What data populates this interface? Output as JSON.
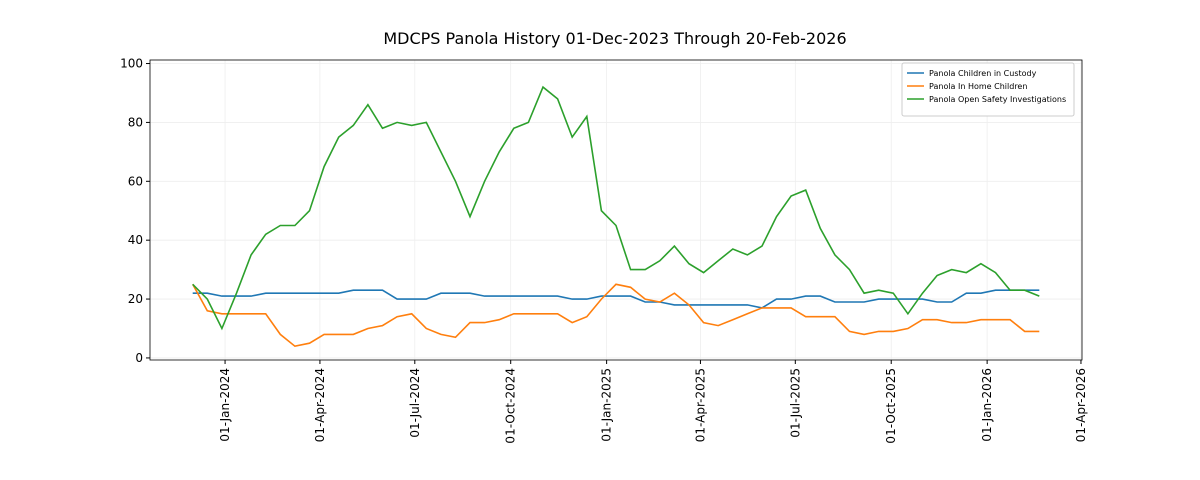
{
  "chart_data": {
    "type": "line",
    "title": "MDCPS Panola History 01-Dec-2023 Through 20-Feb-2026",
    "x": [
      "2023-12-01",
      "2023-12-15",
      "2023-12-29",
      "2024-01-12",
      "2024-01-26",
      "2024-02-09",
      "2024-02-23",
      "2024-03-08",
      "2024-03-22",
      "2024-04-05",
      "2024-04-19",
      "2024-05-03",
      "2024-05-17",
      "2024-05-31",
      "2024-06-14",
      "2024-06-28",
      "2024-07-12",
      "2024-07-26",
      "2024-08-09",
      "2024-08-23",
      "2024-09-06",
      "2024-09-20",
      "2024-10-04",
      "2024-10-18",
      "2024-11-01",
      "2024-11-15",
      "2024-11-29",
      "2024-12-13",
      "2024-12-27",
      "2025-01-10",
      "2025-01-24",
      "2025-02-07",
      "2025-02-21",
      "2025-03-07",
      "2025-03-21",
      "2025-04-04",
      "2025-04-18",
      "2025-05-02",
      "2025-05-16",
      "2025-05-30",
      "2025-06-13",
      "2025-06-27",
      "2025-07-11",
      "2025-07-25",
      "2025-08-08",
      "2025-08-22",
      "2025-09-05",
      "2025-09-19",
      "2025-10-03",
      "2025-10-17",
      "2025-10-31",
      "2025-11-14",
      "2025-11-28",
      "2025-12-12",
      "2025-12-26",
      "2026-01-09",
      "2026-01-23",
      "2026-02-06",
      "2026-02-20"
    ],
    "series": [
      {
        "name": "Panola Children in Custody",
        "color": "#1f77b4",
        "values": [
          22,
          22,
          21,
          21,
          21,
          22,
          22,
          22,
          22,
          22,
          22,
          23,
          23,
          23,
          20,
          20,
          20,
          22,
          22,
          22,
          21,
          21,
          21,
          21,
          21,
          21,
          20,
          20,
          21,
          21,
          21,
          19,
          19,
          18,
          18,
          18,
          18,
          18,
          18,
          17,
          20,
          20,
          21,
          21,
          19,
          19,
          19,
          20,
          20,
          20,
          20,
          19,
          19,
          22,
          22,
          23,
          23,
          23,
          23
        ]
      },
      {
        "name": "Panola In Home Children",
        "color": "#ff7f0e",
        "values": [
          25,
          16,
          15,
          15,
          15,
          15,
          8,
          4,
          5,
          8,
          8,
          8,
          10,
          11,
          14,
          15,
          10,
          8,
          7,
          12,
          12,
          13,
          15,
          15,
          15,
          15,
          12,
          14,
          20,
          25,
          24,
          20,
          19,
          22,
          18,
          12,
          11,
          13,
          15,
          17,
          17,
          17,
          14,
          14,
          14,
          9,
          8,
          9,
          9,
          10,
          13,
          13,
          12,
          12,
          13,
          13,
          13,
          9,
          9
        ]
      },
      {
        "name": "Panola Open Safety Investigations",
        "color": "#2ca02c",
        "values": [
          25,
          20,
          10,
          22,
          35,
          42,
          45,
          45,
          50,
          65,
          75,
          79,
          86,
          78,
          80,
          79,
          80,
          70,
          60,
          48,
          60,
          70,
          78,
          80,
          92,
          88,
          75,
          82,
          50,
          45,
          30,
          30,
          33,
          38,
          32,
          29,
          33,
          37,
          35,
          38,
          48,
          55,
          57,
          44,
          35,
          30,
          22,
          23,
          22,
          15,
          22,
          28,
          30,
          29,
          32,
          29,
          23,
          23,
          21
        ]
      }
    ],
    "xlim": [
      "2023-10-21",
      "2026-04-02"
    ],
    "xticks": [
      {
        "value": "2024-01-01",
        "label": "01-Jan-2024"
      },
      {
        "value": "2024-04-01",
        "label": "01-Apr-2024"
      },
      {
        "value": "2024-07-01",
        "label": "01-Jul-2024"
      },
      {
        "value": "2024-10-01",
        "label": "01-Oct-2024"
      },
      {
        "value": "2025-01-01",
        "label": "01-Jan-2025"
      },
      {
        "value": "2025-04-01",
        "label": "01-Apr-2025"
      },
      {
        "value": "2025-07-01",
        "label": "01-Jul-2025"
      },
      {
        "value": "2025-10-01",
        "label": "01-Oct-2025"
      },
      {
        "value": "2026-01-01",
        "label": "01-Jan-2026"
      },
      {
        "value": "2026-04-01",
        "label": "01-Apr-2026"
      }
    ],
    "ylim": [
      -0.7,
      101.2
    ],
    "yticks": [
      0,
      20,
      40,
      60,
      80,
      100
    ],
    "grid": true,
    "legend": "upper right"
  }
}
